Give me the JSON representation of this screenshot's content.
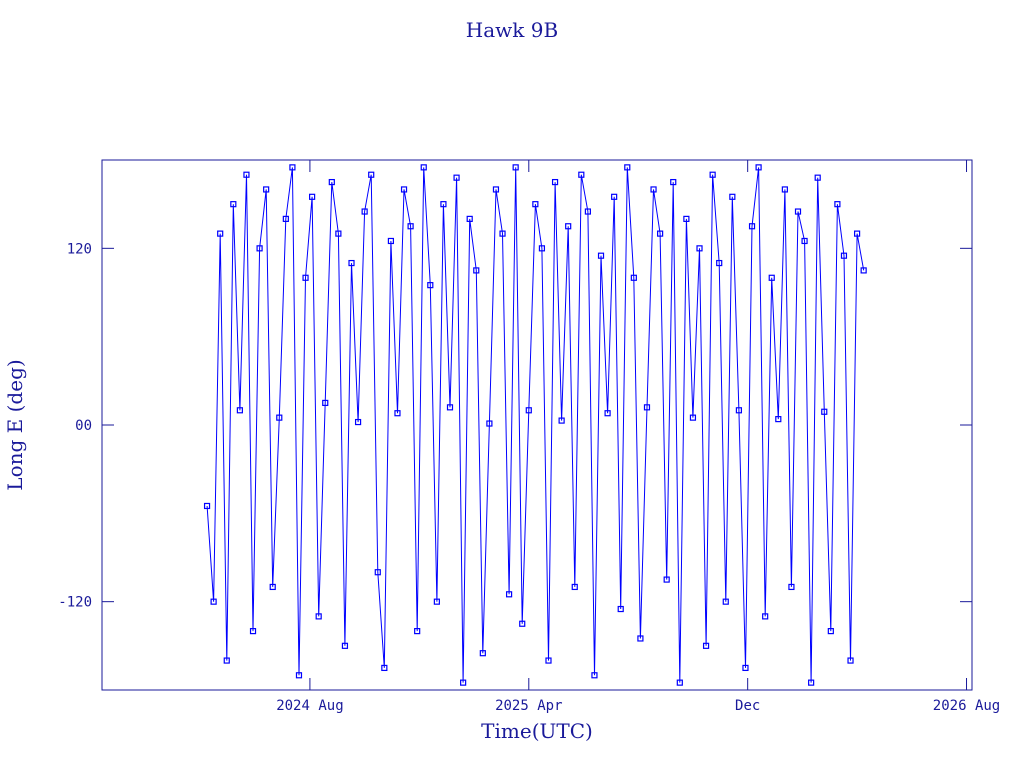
{
  "chart_data": {
    "type": "line",
    "title": "Hawk 9B",
    "xlabel": "Time(UTC)",
    "ylabel": "Long E (deg)",
    "xlim": [
      2023.95,
      2026.6
    ],
    "ylim": [
      -180,
      180
    ],
    "xticks": [
      {
        "value": 2024.5833,
        "label": "2024 Aug"
      },
      {
        "value": 2025.25,
        "label": "2025 Apr"
      },
      {
        "value": 2025.9167,
        "label": "Dec"
      },
      {
        "value": 2026.5833,
        "label": "2026 Aug"
      }
    ],
    "yticks": [
      -120,
      {
        "value": 0,
        "label": "00"
      },
      120
    ],
    "series": [
      {
        "name": "Hawk 9B",
        "color": "#0000ff",
        "x": [
          2024.27,
          2024.29,
          2024.31,
          2024.33,
          2024.35,
          2024.37,
          2024.39,
          2024.41,
          2024.43,
          2024.45,
          2024.47,
          2024.49,
          2024.51,
          2024.53,
          2024.55,
          2024.57,
          2024.59,
          2024.61,
          2024.63,
          2024.65,
          2024.67,
          2024.69,
          2024.71,
          2024.73,
          2024.75,
          2024.77,
          2024.79,
          2024.81,
          2024.83,
          2024.85,
          2024.87,
          2024.89,
          2024.91,
          2024.93,
          2024.95,
          2024.97,
          2024.99,
          2025.01,
          2025.03,
          2025.05,
          2025.07,
          2025.09,
          2025.11,
          2025.13,
          2025.15,
          2025.17,
          2025.19,
          2025.21,
          2025.23,
          2025.25,
          2025.27,
          2025.29,
          2025.31,
          2025.33,
          2025.35,
          2025.37,
          2025.39,
          2025.41,
          2025.43,
          2025.45,
          2025.47,
          2025.49,
          2025.51,
          2025.53,
          2025.55,
          2025.57,
          2025.59,
          2025.61,
          2025.63,
          2025.65,
          2025.67,
          2025.69,
          2025.71,
          2025.73,
          2025.75,
          2025.77,
          2025.79,
          2025.81,
          2025.83,
          2025.85,
          2025.87,
          2025.89,
          2025.91,
          2025.93,
          2025.95,
          2025.97,
          2025.99,
          2026.01,
          2026.03,
          2026.05,
          2026.07,
          2026.09,
          2026.11,
          2026.13,
          2026.15,
          2026.17,
          2026.19,
          2026.21,
          2026.23,
          2026.25,
          2026.27
        ],
        "values": [
          -55,
          -120,
          130,
          -160,
          150,
          10,
          170,
          -140,
          120,
          160,
          -110,
          5,
          140,
          175,
          -170,
          100,
          155,
          -130,
          15,
          165,
          130,
          -150,
          110,
          2,
          145,
          170,
          -100,
          -165,
          125,
          8,
          160,
          135,
          -140,
          175,
          95,
          -120,
          150,
          12,
          168,
          -175,
          140,
          105,
          -155,
          1,
          160,
          130,
          -115,
          175,
          -135,
          10,
          150,
          120,
          -160,
          165,
          3,
          135,
          -110,
          170,
          145,
          -170,
          115,
          8,
          155,
          -125,
          175,
          100,
          -145,
          12,
          160,
          130,
          -105,
          165,
          -175,
          140,
          5,
          120,
          -150,
          170,
          110,
          -120,
          155,
          10,
          -165,
          135,
          175,
          -130,
          100,
          4,
          160,
          -110,
          145,
          125,
          -175,
          168,
          9,
          -140,
          150,
          115,
          -160,
          130,
          105
        ]
      }
    ]
  }
}
